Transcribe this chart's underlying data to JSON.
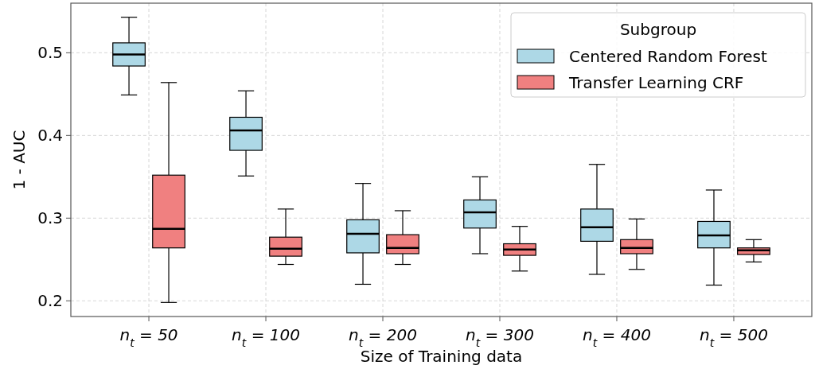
{
  "chart_data": {
    "type": "box",
    "xlabel": "Size of Training data",
    "ylabel": "1 - AUC",
    "legend_title": "Subgroup",
    "legend": "top right",
    "grid": true,
    "categories": [
      "n$_{t}$ = 50",
      "n$_{t}$ = 100",
      "n$_{t}$ = 200",
      "n$_{t}$ = 300",
      "n$_{t}$ = 400",
      "n$_{t}$ = 500"
    ],
    "ylim": [
      0.181,
      0.56
    ],
    "yticks": [
      0.2,
      0.3,
      0.4,
      0.5
    ],
    "series": [
      {
        "name": "Centered Random Forest",
        "color": "#add8e6",
        "boxes": [
          {
            "low": 0.449,
            "q1": 0.484,
            "median": 0.498,
            "q3": 0.512,
            "high": 0.543
          },
          {
            "low": 0.351,
            "q1": 0.382,
            "median": 0.406,
            "q3": 0.422,
            "high": 0.454
          },
          {
            "low": 0.22,
            "q1": 0.258,
            "median": 0.281,
            "q3": 0.298,
            "high": 0.342
          },
          {
            "low": 0.257,
            "q1": 0.288,
            "median": 0.307,
            "q3": 0.322,
            "high": 0.35
          },
          {
            "low": 0.232,
            "q1": 0.272,
            "median": 0.289,
            "q3": 0.311,
            "high": 0.365
          },
          {
            "low": 0.219,
            "q1": 0.264,
            "median": 0.279,
            "q3": 0.296,
            "high": 0.334
          }
        ]
      },
      {
        "name": "Transfer Learning CRF",
        "color": "#f08080",
        "boxes": [
          {
            "low": 0.198,
            "q1": 0.264,
            "median": 0.287,
            "q3": 0.352,
            "high": 0.464
          },
          {
            "low": 0.244,
            "q1": 0.254,
            "median": 0.263,
            "q3": 0.277,
            "high": 0.311
          },
          {
            "low": 0.244,
            "q1": 0.257,
            "median": 0.264,
            "q3": 0.28,
            "high": 0.309
          },
          {
            "low": 0.236,
            "q1": 0.255,
            "median": 0.262,
            "q3": 0.269,
            "high": 0.29
          },
          {
            "low": 0.238,
            "q1": 0.257,
            "median": 0.264,
            "q3": 0.274,
            "high": 0.299
          },
          {
            "low": 0.247,
            "q1": 0.256,
            "median": 0.261,
            "q3": 0.264,
            "high": 0.274
          }
        ]
      }
    ]
  }
}
